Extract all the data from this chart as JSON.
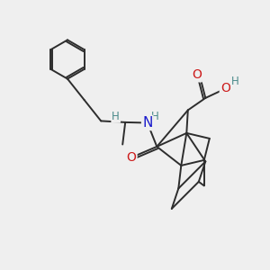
{
  "bg_color": "#efefef",
  "bond_color": "#2d2d2d",
  "bond_width": 1.4,
  "atom_colors": {
    "C": "#2d2d2d",
    "H": "#4a8a8a",
    "N": "#1a1acc",
    "O": "#cc1a1a"
  },
  "font_size_atoms": 10,
  "font_size_H": 8.5
}
